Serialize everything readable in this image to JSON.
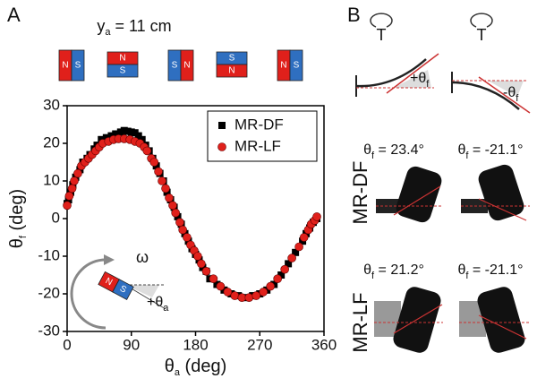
{
  "panel_a": {
    "label": "A",
    "title": {
      "main": "y",
      "sub": "a",
      "rest": " = 11 cm"
    },
    "magnets": [
      [
        "N",
        "S"
      ],
      [
        "N",
        "S"
      ],
      [
        "S",
        "N"
      ],
      [
        "S",
        "N"
      ],
      [
        "N",
        "S"
      ]
    ],
    "inset": {
      "omega": "ω",
      "angle": {
        "main": "+θ",
        "sub": "a"
      }
    }
  },
  "chart_data": {
    "type": "scatter",
    "xlabel": {
      "main": "θ",
      "sub": "a",
      "rest": " (deg)"
    },
    "ylabel": {
      "main": "θ",
      "sub": "f",
      "rest": " (deg)"
    },
    "xlim": [
      0,
      360
    ],
    "ylim": [
      -30,
      30
    ],
    "xticks": [
      0,
      90,
      180,
      270,
      360
    ],
    "yticks": [
      -30,
      -20,
      -10,
      0,
      10,
      20,
      30
    ],
    "legend": "upper right",
    "series": [
      {
        "name": "MR-DF",
        "color": "#000000",
        "marker": "square",
        "x": [
          0,
          2,
          5,
          8,
          12,
          18,
          22,
          28,
          32,
          38,
          42,
          48,
          55,
          62,
          68,
          75,
          80,
          85,
          90,
          95,
          100,
          105,
          110,
          115,
          120,
          125,
          130,
          135,
          140,
          145,
          150,
          155,
          160,
          165,
          170,
          175,
          180,
          185,
          190,
          195,
          200,
          210,
          220,
          230,
          240,
          250,
          260,
          270,
          280,
          290,
          300,
          310,
          320,
          330,
          335,
          340,
          345,
          350
        ],
        "values": [
          4,
          5,
          7,
          9,
          11,
          13,
          15,
          16,
          17,
          18.5,
          19.5,
          21,
          21.5,
          22,
          22.5,
          23,
          23.4,
          23.2,
          23,
          22.8,
          22,
          21,
          19.5,
          18,
          16,
          14,
          12,
          10,
          7,
          5,
          3,
          0.5,
          -1.5,
          -4,
          -6,
          -8,
          -9.5,
          -11,
          -13,
          -14,
          -16,
          -17.5,
          -19,
          -20,
          -20.5,
          -21,
          -20.5,
          -20,
          -19,
          -17.5,
          -15,
          -12,
          -9,
          -6,
          -4,
          -2.5,
          -1,
          0
        ]
      },
      {
        "name": "MR-LF",
        "color": "#e0201b",
        "marker": "circle",
        "x": [
          0,
          3,
          7,
          10,
          15,
          20,
          25,
          30,
          35,
          40,
          45,
          50,
          58,
          65,
          72,
          80,
          88,
          95,
          102,
          108,
          112,
          118,
          122,
          128,
          133,
          138,
          143,
          148,
          152,
          158,
          162,
          168,
          173,
          178,
          183,
          188,
          195,
          205,
          215,
          225,
          235,
          245,
          255,
          265,
          275,
          285,
          295,
          305,
          315,
          325,
          332,
          338,
          342,
          347,
          350
        ],
        "values": [
          3.5,
          6,
          8,
          10,
          12,
          14,
          15,
          16,
          17,
          18,
          19,
          20,
          20.5,
          21,
          21.2,
          21.2,
          21,
          20.5,
          20,
          19,
          18,
          16,
          15,
          12.5,
          10,
          8,
          5.5,
          3.5,
          1.5,
          -1,
          -3,
          -5,
          -7,
          -8.5,
          -10,
          -12,
          -14,
          -16,
          -18,
          -19.5,
          -20.5,
          -21,
          -21,
          -20.5,
          -19.5,
          -18,
          -16,
          -13.5,
          -10.5,
          -7.5,
          -5,
          -3,
          -1.5,
          -0.5,
          0.5
        ]
      }
    ]
  },
  "panel_b": {
    "label": "B",
    "torque": "T",
    "pos_angle": {
      "main": "+θ",
      "sub": "f"
    },
    "neg_angle": {
      "main": "-θ",
      "sub": "f"
    },
    "rows": [
      {
        "name": "MR-DF",
        "angles": [
          {
            "main": "θ",
            "sub": "f",
            "rest": " = 23.4°"
          },
          {
            "main": "θ",
            "sub": "f",
            "rest": " = -21.1°"
          }
        ]
      },
      {
        "name": "MR-LF",
        "angles": [
          {
            "main": "θ",
            "sub": "f",
            "rest": " = 21.2°"
          },
          {
            "main": "θ",
            "sub": "f",
            "rest": " = -21.1°"
          }
        ]
      }
    ]
  }
}
